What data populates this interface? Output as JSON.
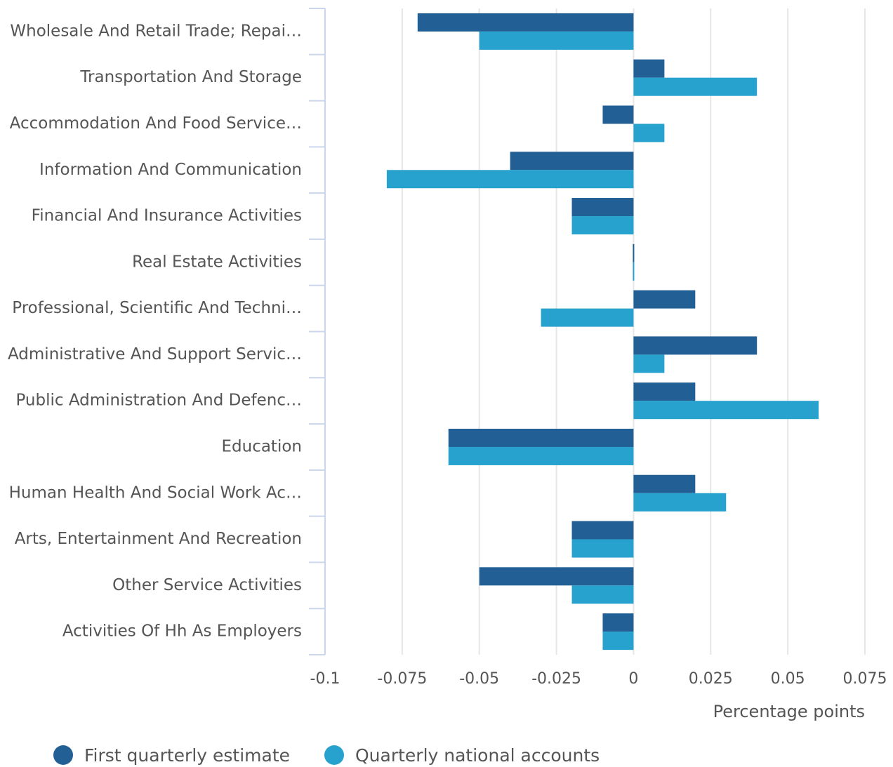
{
  "chart_data": {
    "type": "barh",
    "xlabel": "Percentage points",
    "categories": [
      "Wholesale And Retail Trade; Repai…",
      "Transportation And Storage",
      "Accommodation And Food Service…",
      "Information And Communication",
      "Financial And Insurance Activities",
      "Real Estate Activities",
      "Professional, Scientific And Techni…",
      "Administrative And Support Servic…",
      "Public Administration And Defenc…",
      "Education",
      "Human Health And Social Work Ac…",
      "Arts, Entertainment And Recreation",
      "Other Service Activities",
      "Activities Of Hh As Employers"
    ],
    "series": [
      {
        "name": "First quarterly estimate",
        "color": "#215f94",
        "values": [
          -0.07,
          0.01,
          -0.01,
          -0.04,
          -0.02,
          0,
          0.02,
          0.04,
          0.02,
          -0.06,
          0.02,
          -0.02,
          -0.05,
          -0.01
        ]
      },
      {
        "name": "Quarterly national accounts",
        "color": "#27a1cd",
        "values": [
          -0.05,
          0.04,
          0.01,
          -0.08,
          -0.02,
          0,
          -0.03,
          0.01,
          0.06,
          -0.06,
          0.03,
          -0.02,
          -0.02,
          -0.01
        ]
      }
    ],
    "xlim": [
      -0.1,
      0.075
    ],
    "xticks": [
      -0.1,
      -0.075,
      -0.05,
      -0.025,
      0,
      0.025,
      0.05,
      0.075
    ],
    "grid": true
  }
}
